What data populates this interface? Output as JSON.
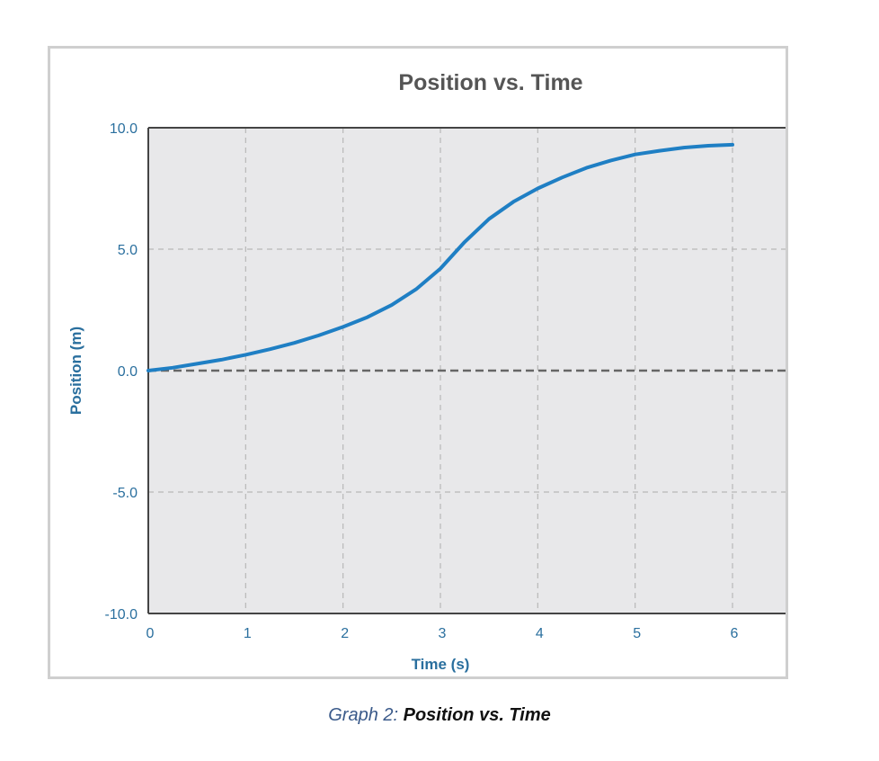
{
  "chart_data": {
    "type": "line",
    "title": "Position vs. Time",
    "xlabel": "Time (s)",
    "ylabel": "Position (m)",
    "xlim": [
      0,
      6
    ],
    "ylim": [
      -10,
      10
    ],
    "x_ticks": [
      "0",
      "1",
      "2",
      "3",
      "4",
      "5",
      "6"
    ],
    "y_ticks": [
      "10.0",
      "5.0",
      "0.0",
      "-5.0",
      "-10.0"
    ],
    "grid": true,
    "series": [
      {
        "color": "#1f7fc4",
        "x": [
          0,
          0.25,
          0.5,
          0.75,
          1.0,
          1.25,
          1.5,
          1.75,
          2.0,
          2.25,
          2.5,
          2.75,
          3.0,
          3.25,
          3.5,
          3.75,
          4.0,
          4.25,
          4.5,
          4.75,
          5.0,
          5.25,
          5.5,
          5.75,
          6.0
        ],
        "y": [
          0.0,
          0.12,
          0.28,
          0.45,
          0.65,
          0.88,
          1.14,
          1.45,
          1.8,
          2.2,
          2.7,
          3.35,
          4.2,
          5.3,
          6.25,
          6.95,
          7.5,
          7.95,
          8.35,
          8.65,
          8.9,
          9.05,
          9.18,
          9.26,
          9.3
        ]
      }
    ]
  },
  "caption": {
    "label": "Graph 2:",
    "text": "Position vs. Time"
  }
}
